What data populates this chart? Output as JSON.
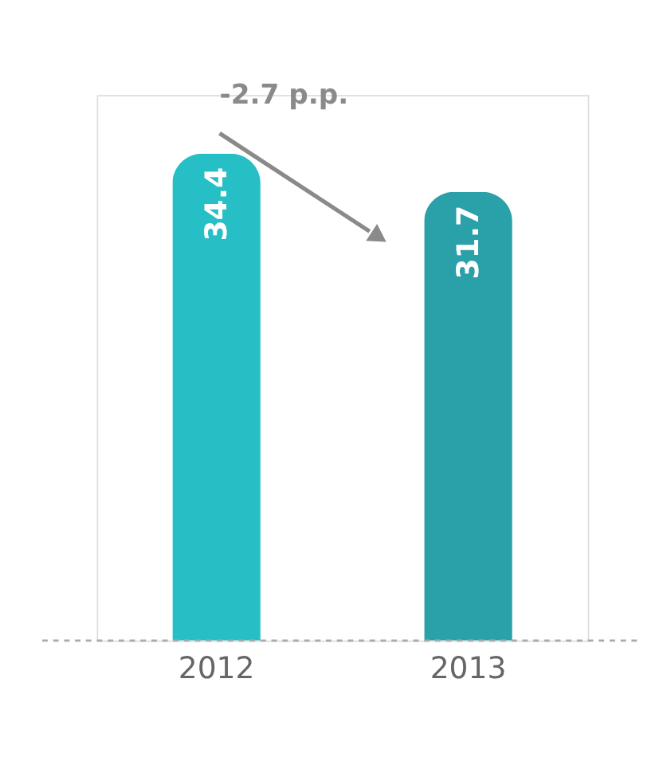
{
  "chart_data": {
    "type": "bar",
    "categories": [
      "2012",
      "2013"
    ],
    "values": [
      34.4,
      31.7
    ],
    "colors": [
      "#26bfc6",
      "#2aa0a8"
    ],
    "data_labels": true,
    "annotations": [
      "-2.7 p.p."
    ],
    "ref_lines": [
      {
        "axis": "y",
        "value": 0,
        "color": "#aaaaaa",
        "line_style": "dashed"
      }
    ]
  }
}
